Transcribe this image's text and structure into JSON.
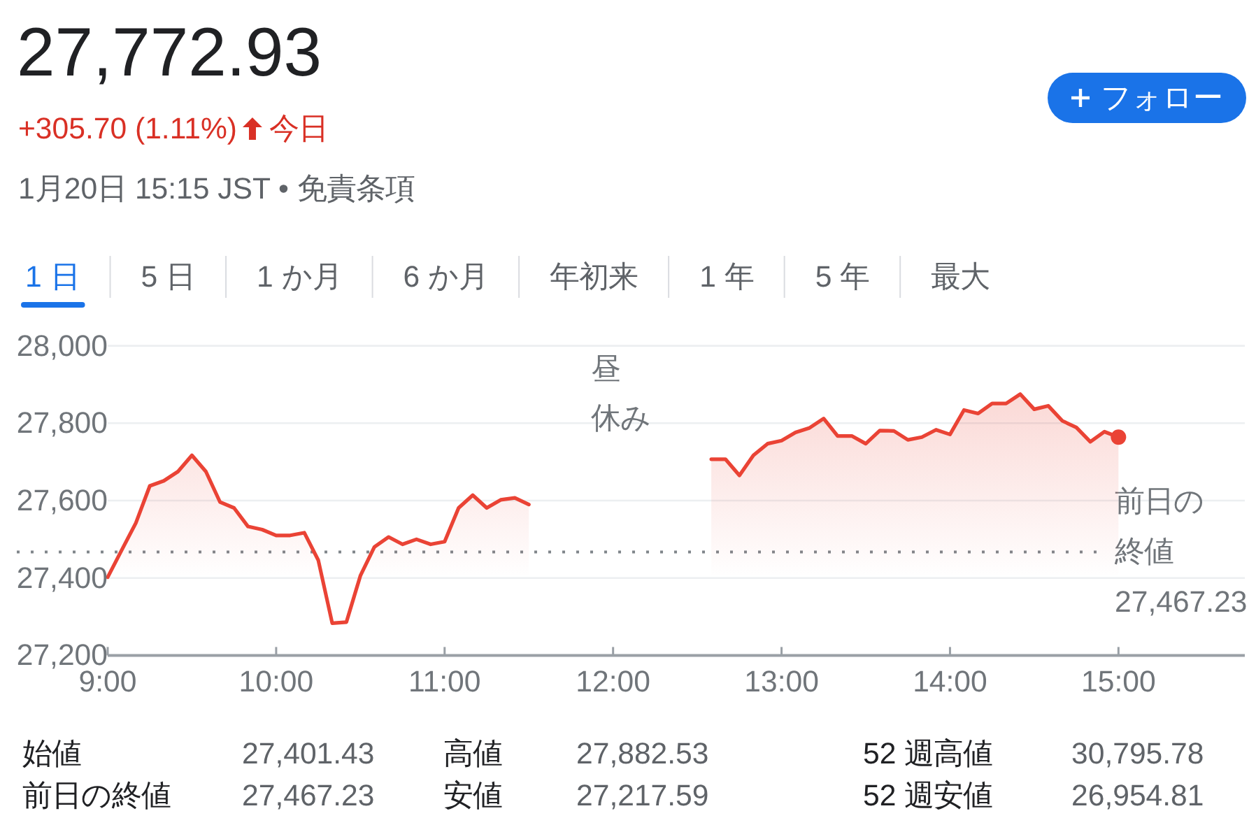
{
  "chart_data": {
    "type": "area",
    "title": "27,772.93",
    "subtitle": "+305.70 (1.11%) 今日",
    "annotations": [
      "1月20日 15:15 JST • 免責条項",
      "フォロー",
      "1 日",
      "5 日",
      "1 か月",
      "6 か月",
      "年初来",
      "1 年",
      "5 年",
      "最大",
      "昼休み",
      "始値",
      "27,401.43",
      "高値",
      "27,882.53",
      "52 週高値",
      "30,795.78",
      "前日の終値",
      "27,467.23",
      "安値",
      "27,217.59",
      "52 週安値",
      "26,954.81"
    ],
    "xlim": [
      9,
      15.75
    ],
    "ylim": [
      27200,
      28000
    ],
    "xticks": [
      {
        "value": 9,
        "label": "9:00"
      },
      {
        "value": 10,
        "label": "10:00"
      },
      {
        "value": 11,
        "label": "11:00"
      },
      {
        "value": 12,
        "label": "12:00"
      },
      {
        "value": 13,
        "label": "13:00"
      },
      {
        "value": 14,
        "label": "14:00"
      },
      {
        "value": 15,
        "label": "15:00"
      }
    ],
    "yticks": [
      {
        "value": 27200,
        "label": "27,200"
      },
      {
        "value": 27400,
        "label": "27,400"
      },
      {
        "value": 27600,
        "label": "27,600"
      },
      {
        "value": 27800,
        "label": "27,800"
      },
      {
        "value": 28000,
        "label": "28,000"
      }
    ],
    "grid": "y",
    "ref_lines": [
      {
        "axis": "y",
        "value": 27467.23,
        "label": "前日の終値 27,467.23",
        "line_style": "dotted",
        "color": "#80868b"
      }
    ],
    "series": [
      {
        "color": "#ea4335",
        "x": [
          9,
          9.083,
          9.167,
          9.25,
          9.333,
          9.417,
          9.5,
          9.583,
          9.667,
          9.75,
          9.833,
          9.917,
          10,
          10.083,
          10.167,
          10.25,
          10.333,
          10.417,
          10.5,
          10.583,
          10.667,
          10.75,
          10.833,
          10.917,
          11,
          11.083,
          11.167,
          11.25,
          11.333,
          11.417,
          11.5
        ],
        "values": [
          27402,
          27472,
          27542,
          27638,
          27651,
          27675,
          27717,
          27675,
          27596,
          27581,
          27533,
          27525,
          27510,
          27510,
          27517,
          27446,
          27283,
          27286,
          27406,
          27480,
          27506,
          27487,
          27500,
          27487,
          27494,
          27581,
          27614,
          27581,
          27602,
          27607,
          27590
        ]
      },
      {
        "color": "#ea4335",
        "x": [
          12.583,
          12.667,
          12.75,
          12.833,
          12.917,
          13,
          13.083,
          13.167,
          13.25,
          13.333,
          13.417,
          13.5,
          13.583,
          13.667,
          13.75,
          13.833,
          13.917,
          14,
          14.083,
          14.167,
          14.25,
          14.333,
          14.417,
          14.5,
          14.583,
          14.667,
          14.75,
          14.833,
          14.917,
          15
        ],
        "values": [
          27707,
          27707,
          27665,
          27717,
          27747,
          27755,
          27776,
          27788,
          27812,
          27767,
          27767,
          27747,
          27781,
          27780,
          27757,
          27764,
          27783,
          27771,
          27834,
          27825,
          27851,
          27851,
          27875,
          27836,
          27845,
          27806,
          27789,
          27752,
          27778,
          27764
        ]
      },
      {
        "type": "scatter",
        "marker": "circle",
        "color": "#ea4335",
        "x": [
          15
        ],
        "values": [
          27764
        ]
      }
    ]
  }
}
